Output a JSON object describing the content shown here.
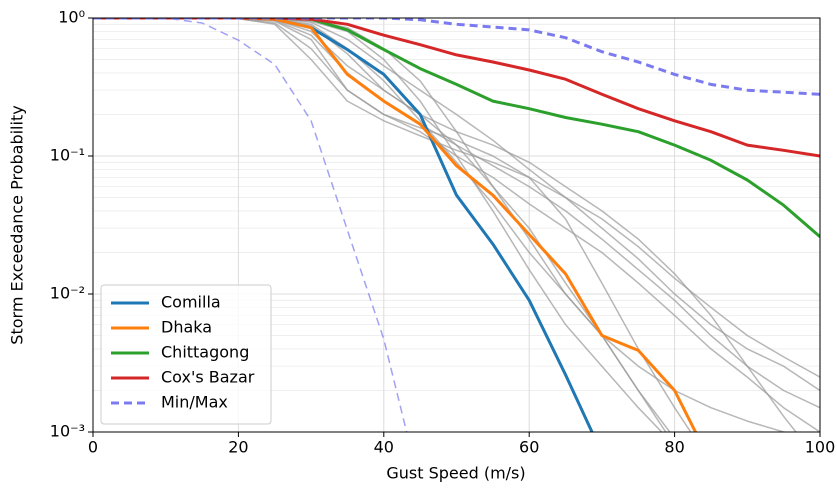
{
  "chart_data": {
    "type": "line",
    "xlabel": "Gust Speed (m/s)",
    "ylabel": "Storm Exceedance Probability",
    "x": [
      0,
      5,
      10,
      15,
      20,
      25,
      30,
      35,
      40,
      45,
      50,
      55,
      60,
      65,
      70,
      75,
      80,
      85,
      90,
      95,
      100
    ],
    "xlim": [
      0,
      100
    ],
    "xticks": [
      0,
      20,
      40,
      60,
      80,
      100
    ],
    "ylim": [
      0.001,
      1
    ],
    "ylog": true,
    "grid": true,
    "legend": "lower left",
    "yticks": [
      {
        "value": 0.001,
        "label": "10⁻³"
      },
      {
        "value": 0.01,
        "label": "10⁻²"
      },
      {
        "value": 0.1,
        "label": "10⁻¹"
      },
      {
        "value": 1,
        "label": "10⁰"
      }
    ],
    "series": [
      {
        "color": "#999999",
        "values": [
          1,
          1,
          1,
          1,
          1,
          0.95,
          0.7,
          0.3,
          0.2,
          0.15,
          0.1,
          0.07,
          0.045,
          0.03,
          0.02,
          0.012,
          0.007,
          0.004,
          0.0025,
          0.0015,
          0.001
        ]
      },
      {
        "color": "#999999",
        "values": [
          1,
          1,
          1,
          1,
          1,
          0.97,
          0.8,
          0.45,
          0.3,
          0.2,
          0.12,
          0.06,
          0.03,
          0.012,
          0.005,
          0.002,
          0.0009,
          null,
          null,
          null,
          null
        ]
      },
      {
        "color": "#999999",
        "values": [
          1,
          1,
          1,
          1,
          1,
          0.98,
          0.9,
          0.6,
          0.35,
          0.18,
          0.09,
          0.045,
          0.02,
          0.01,
          0.005,
          0.003,
          0.002,
          0.0015,
          0.0012,
          0.001,
          0.0009
        ]
      },
      {
        "color": "#999999",
        "values": [
          1,
          1,
          1,
          1,
          1,
          0.99,
          0.95,
          0.8,
          0.5,
          0.25,
          0.1,
          0.04,
          0.015,
          0.006,
          0.003,
          0.0015,
          0.0008,
          null,
          null,
          null,
          null
        ]
      },
      {
        "color": "#999999",
        "values": [
          1,
          1,
          1,
          1,
          0.99,
          0.9,
          0.5,
          0.25,
          0.18,
          0.14,
          0.11,
          0.09,
          0.07,
          0.05,
          0.035,
          0.022,
          0.013,
          0.008,
          0.005,
          0.0035,
          0.0025
        ]
      },
      {
        "color": "#999999",
        "values": [
          1,
          1,
          1,
          1,
          1,
          0.96,
          0.75,
          0.4,
          0.25,
          0.17,
          0.12,
          0.085,
          0.06,
          0.04,
          0.025,
          0.015,
          0.009,
          0.005,
          0.003,
          0.002,
          0.0015
        ]
      },
      {
        "color": "#999999",
        "values": [
          1,
          1,
          1,
          1,
          1,
          0.99,
          0.93,
          0.7,
          0.45,
          0.3,
          0.2,
          0.13,
          0.08,
          0.05,
          0.03,
          0.018,
          0.01,
          0.006,
          0.004,
          0.003,
          0.002
        ]
      },
      {
        "color": "#999999",
        "values": [
          1,
          1,
          1,
          1,
          1,
          1,
          0.97,
          0.85,
          0.6,
          0.35,
          0.15,
          0.06,
          0.025,
          0.01,
          0.005,
          0.002,
          0.0008,
          null,
          null,
          null,
          null
        ]
      },
      {
        "color": "#999999",
        "values": [
          1,
          1,
          1,
          1,
          0.99,
          0.92,
          0.6,
          0.3,
          0.2,
          0.16,
          0.13,
          0.1,
          0.07,
          0.035,
          0.012,
          0.004,
          0.0015,
          0.0006,
          null,
          null,
          null
        ]
      },
      {
        "color": "#999999",
        "values": [
          1,
          1,
          1,
          1,
          1,
          0.98,
          0.88,
          0.55,
          0.3,
          0.2,
          0.15,
          0.12,
          0.09,
          0.06,
          0.04,
          0.025,
          0.014,
          0.007,
          0.003,
          0.0013,
          0.0006
        ]
      },
      {
        "name": "Comilla",
        "color": "#1f77b4",
        "values": [
          1,
          1,
          1,
          1,
          1,
          0.98,
          0.85,
          0.59,
          0.39,
          0.2,
          0.052,
          0.023,
          0.009,
          0.0026,
          0.0007,
          null,
          null,
          null,
          null,
          null,
          null
        ]
      },
      {
        "name": "Dhaka",
        "color": "#ff7f0e",
        "values": [
          1,
          1,
          1,
          1,
          1,
          0.98,
          0.85,
          0.39,
          0.25,
          0.17,
          0.085,
          0.052,
          0.027,
          0.014,
          0.005,
          0.0039,
          0.002,
          0.0006,
          null,
          null,
          null
        ]
      },
      {
        "name": "Chittagong",
        "color": "#2ca02c",
        "values": [
          1,
          1,
          1,
          1,
          1,
          1,
          0.98,
          0.82,
          0.59,
          0.43,
          0.33,
          0.25,
          0.22,
          0.19,
          0.17,
          0.15,
          0.12,
          0.093,
          0.067,
          0.044,
          0.026
        ]
      },
      {
        "name": "Cox's Bazar",
        "color": "#d62728",
        "values": [
          1,
          1,
          1,
          1,
          1,
          1,
          0.98,
          0.9,
          0.75,
          0.64,
          0.54,
          0.48,
          0.42,
          0.36,
          0.28,
          0.22,
          0.18,
          0.15,
          0.12,
          0.11,
          0.1
        ]
      },
      {
        "name": "Min/Max",
        "color": "#7b7bef",
        "dashed": true,
        "values": [
          1,
          1,
          1,
          1,
          1,
          1,
          1,
          1,
          1,
          0.97,
          0.9,
          0.86,
          0.82,
          0.72,
          0.57,
          0.48,
          0.39,
          0.33,
          0.3,
          0.29,
          0.28
        ]
      },
      {
        "color": "#7b7bef",
        "dashed": true,
        "values": [
          1,
          1,
          1,
          0.92,
          0.69,
          0.46,
          0.18,
          0.029,
          0.0047,
          0.0004,
          null,
          null,
          null,
          null,
          null,
          null,
          null,
          null,
          null,
          null,
          null
        ]
      }
    ]
  }
}
